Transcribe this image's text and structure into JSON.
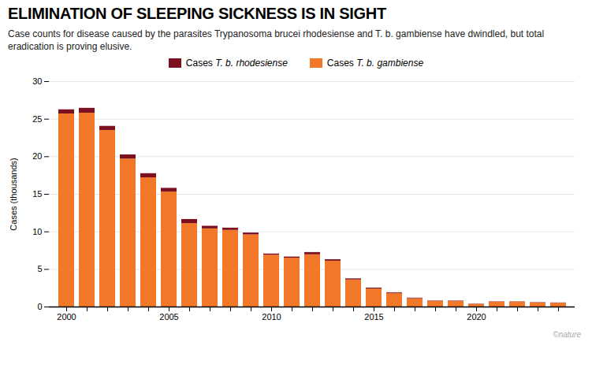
{
  "chart_data": {
    "type": "bar",
    "stacked": true,
    "title": "ELIMINATION OF SLEEPING SICKNESS IS IN SIGHT",
    "subtitle": "Case counts for disease caused by the parasites Trypanosoma brucei rhodesiense and T. b. gambiense have dwindled, but total eradication is proving elusive.",
    "caption": "©nature",
    "ylabel": "Cases (thousands)",
    "categories": [
      "2000",
      null,
      null,
      null,
      null,
      "2005",
      null,
      null,
      null,
      null,
      "2010",
      null,
      null,
      null,
      null,
      "2015",
      null,
      null,
      null,
      null,
      "2020",
      null,
      null,
      null,
      null
    ],
    "series": [
      {
        "name": "Cases T. b. gambiense",
        "color": "#f07828",
        "values": [
          25.7,
          25.8,
          23.5,
          19.7,
          17.2,
          15.3,
          11.1,
          10.4,
          10.2,
          9.6,
          6.9,
          6.5,
          6.95,
          6.1,
          3.6,
          2.4,
          1.8,
          1.1,
          0.75,
          0.75,
          0.35,
          0.65,
          0.65,
          0.55,
          0.5
        ]
      },
      {
        "name": "Cases T. b. rhodesiense",
        "color": "#7a1020",
        "values": [
          0.55,
          0.65,
          0.55,
          0.55,
          0.55,
          0.5,
          0.55,
          0.35,
          0.3,
          0.25,
          0.15,
          0.15,
          0.3,
          0.2,
          0.15,
          0.12,
          0.1,
          0.08,
          0.05,
          0.05,
          0.04,
          0.04,
          0.04,
          0.04,
          0.04
        ]
      }
    ],
    "ylim": [
      0,
      30
    ],
    "yticks": [
      0,
      5,
      10,
      15,
      20,
      25,
      30
    ],
    "grid": true,
    "legend": "top"
  }
}
